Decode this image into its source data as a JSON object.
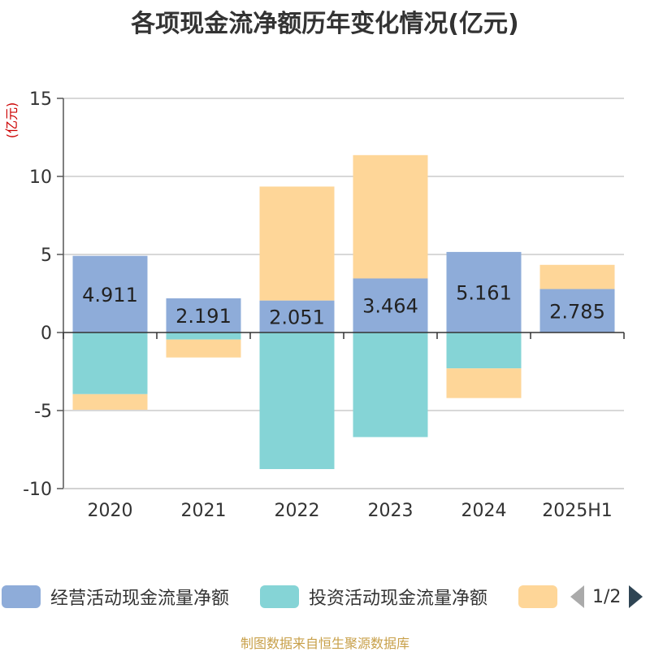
{
  "chart_data": {
    "type": "bar",
    "stacked": true,
    "title": "各项现金流净额历年变化情况(亿元)",
    "unit_label": "(亿元)",
    "categories": [
      "2020",
      "2021",
      "2022",
      "2023",
      "2024",
      "2025H1"
    ],
    "ylim": [
      -10,
      15
    ],
    "yticks": [
      -10,
      -5,
      0,
      5,
      10,
      15
    ],
    "ytick_labels": [
      "-10",
      "-5",
      "0",
      "5",
      "10",
      "15"
    ],
    "grid": true,
    "legend_position": "bottom",
    "series": [
      {
        "name": "经营活动现金流量净额",
        "color": "#8eacd9",
        "values": [
          4.911,
          2.191,
          2.051,
          3.464,
          5.161,
          2.785
        ],
        "labels": [
          "4.911",
          "2.191",
          "2.051",
          "3.464",
          "5.161",
          "2.785"
        ]
      },
      {
        "name": "投资活动现金流量净额",
        "color": "#85d4d6",
        "values": [
          -3.95,
          -0.45,
          -8.75,
          -6.7,
          -2.3,
          0
        ]
      },
      {
        "color": "#fed698",
        "values": [
          -1.0,
          -1.15,
          7.3,
          7.9,
          -1.9,
          1.55
        ]
      }
    ]
  },
  "legend": {
    "items": [
      {
        "label": "经营活动现金流量净额",
        "color": "#8eacd9"
      },
      {
        "label": "投资活动现金流量净额",
        "color": "#85d4d6"
      },
      {
        "label": "",
        "color": "#fed698"
      }
    ],
    "page_indicator": "1/2"
  },
  "source_text": "制图数据来自恒生聚源数据库"
}
